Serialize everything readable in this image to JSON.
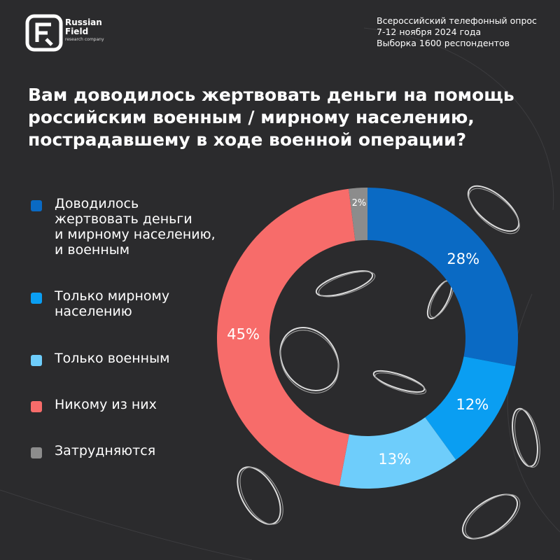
{
  "brand": {
    "line1": "Russian",
    "line2": "Field",
    "sub": "research company"
  },
  "survey_info": {
    "line1": "Всероссийский телефонный опрос",
    "line2": "7-12 ноября 2024 года",
    "line3": "Выборка 1600 респондентов"
  },
  "question": {
    "line1": "Вам доводилось жертвовать деньги на помощь",
    "line2": "российским военным / мирному населению,",
    "line3": "пострадавшему в ходе военной операции?"
  },
  "colors": {
    "background": "#2b2b2d",
    "both": "#0a6ac4",
    "civilians": "#0a9ef2",
    "military": "#6ecdfb",
    "none": "#f76c6a",
    "unsure": "#8c8c8c"
  },
  "chart_data": {
    "type": "pie",
    "variant": "donut",
    "categories": [
      "Доводилось жертвовать деньги и мирному населению, и военным",
      "Только мирному населению",
      "Только военным",
      "Никому из них",
      "Затрудняются"
    ],
    "values": [
      28,
      12,
      13,
      45,
      2
    ],
    "value_labels": [
      "28%",
      "12%",
      "13%",
      "45%",
      "2%"
    ],
    "legend": [
      {
        "label": "Доводилось\nжертвовать деньги\nи мирному населению,\nи военным",
        "color": "#0a6ac4"
      },
      {
        "label": "Только мирному\nнаселению",
        "color": "#0a9ef2"
      },
      {
        "label": "Только военным",
        "color": "#6ecdfb"
      },
      {
        "label": "Никому из них",
        "color": "#f76c6a"
      },
      {
        "label": "Затрудняются",
        "color": "#8c8c8c"
      }
    ],
    "legend_position": "left",
    "start_angle": "top",
    "direction": "clockwise"
  }
}
